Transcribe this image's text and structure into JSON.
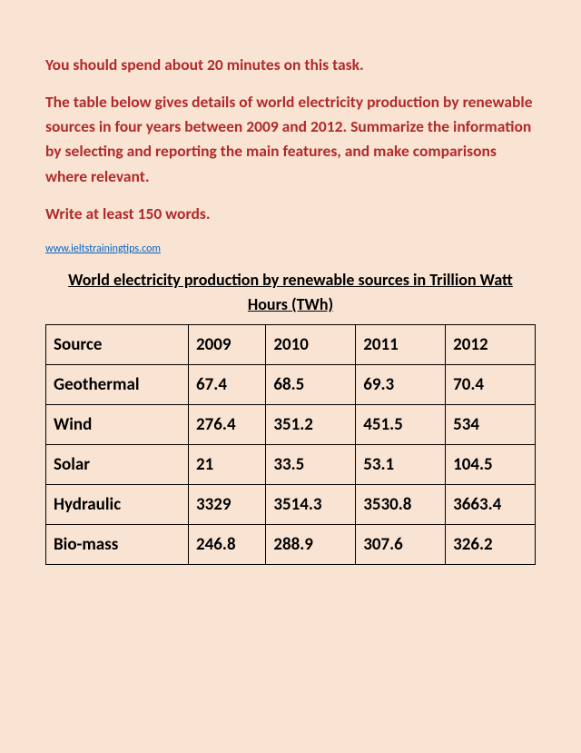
{
  "instructions": {
    "time": "You should spend about 20 minutes on this task.",
    "task": "The table below gives details of world electricity production by renewable sources in four years between 2009 and 2012. Summarize the information by selecting and reporting the main features, and make comparisons where relevant.",
    "words": "Write at least 150 words."
  },
  "link": "www.ieltstrainingtips.com",
  "table": {
    "title": "World electricity production by renewable sources in Trillion Watt Hours (TWh)",
    "headers": [
      "Source",
      "2009",
      "2010",
      "2011",
      "2012"
    ],
    "rows": [
      [
        "Geothermal",
        "67.4",
        "68.5",
        "69.3",
        "70.4"
      ],
      [
        "Wind",
        "276.4",
        "351.2",
        "451.5",
        "534"
      ],
      [
        "Solar",
        "21",
        "33.5",
        "53.1",
        "104.5"
      ],
      [
        "Hydraulic",
        "3329",
        "3514.3",
        "3530.8",
        "3663.4"
      ],
      [
        "Bio-mass",
        "246.8",
        "288.9",
        "307.6",
        "326.2"
      ]
    ],
    "styling": {
      "background_color": "#f9e4d4",
      "instruction_color": "#b02a2a",
      "link_color": "#0563c1",
      "border_color": "#000000",
      "text_color": "#000000",
      "font_family": "Calibri",
      "instruction_fontsize": 17.5,
      "table_fontsize": 19,
      "title_fontsize": 18,
      "link_fontsize": 12
    }
  }
}
